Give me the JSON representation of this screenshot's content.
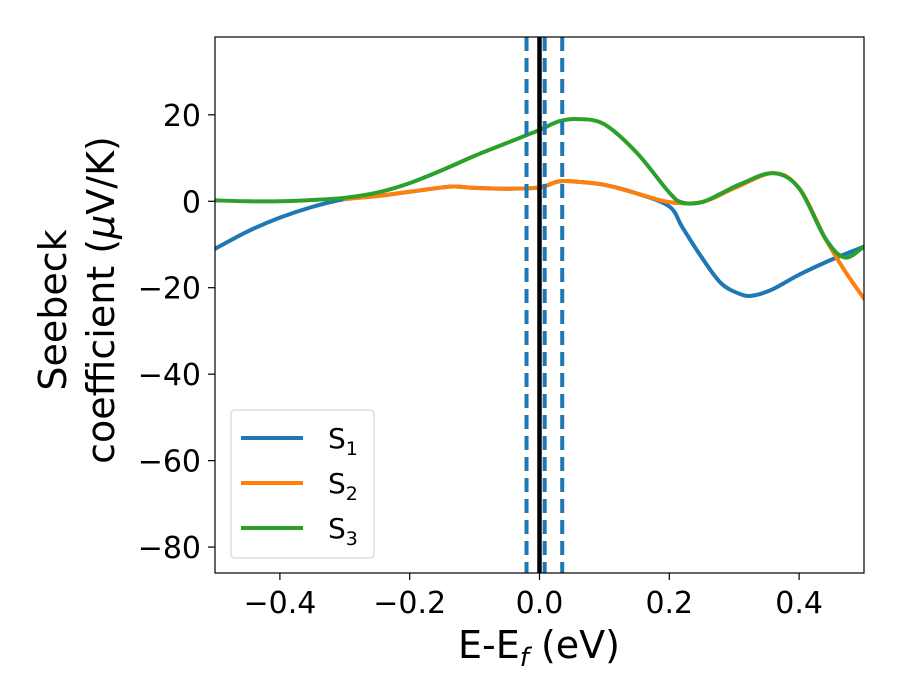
{
  "chart_data": {
    "type": "line",
    "title": "",
    "xlabel": "E-E",
    "xlabel_sub": "f",
    "xlabel_unit": " (eV)",
    "ylabel_line1": "Seebeck",
    "ylabel_line2": "coefficient  (",
    "ylabel_mu": "μ",
    "ylabel_unit": "V/K)",
    "xlim": [
      -0.5,
      0.5
    ],
    "ylim": [
      -86,
      38
    ],
    "grid": false,
    "legend_position": "lower-left",
    "x_ticks": [
      -0.4,
      -0.2,
      0.0,
      0.2,
      0.4
    ],
    "x_tick_labels": [
      "−0.4",
      "−0.2",
      "0.0",
      "0.2",
      "0.4"
    ],
    "y_ticks": [
      -80,
      -60,
      -40,
      -20,
      0,
      20
    ],
    "y_tick_labels": [
      "−80",
      "−60",
      "−40",
      "−20",
      "0",
      "20"
    ],
    "vertical_lines": [
      {
        "name": "fermi-level-line",
        "x": 0.0,
        "style": "solid",
        "color": "#000000"
      },
      {
        "name": "dashed-line-1",
        "x": -0.02,
        "style": "dashed",
        "color": "#1f77b4"
      },
      {
        "name": "dashed-line-2",
        "x": 0.008,
        "style": "dashed",
        "color": "#1f77b4"
      },
      {
        "name": "dashed-line-3",
        "x": 0.035,
        "style": "dashed",
        "color": "#1f77b4"
      }
    ],
    "series": [
      {
        "name": "S",
        "sub": "1",
        "color": "#1f77b4",
        "x": [
          -0.5,
          -0.45,
          -0.4,
          -0.35,
          -0.3,
          -0.25,
          -0.2,
          -0.15,
          -0.13,
          -0.1,
          -0.05,
          0.0,
          0.03,
          0.06,
          0.1,
          0.15,
          0.2,
          0.22,
          0.25,
          0.28,
          0.31,
          0.33,
          0.36,
          0.4,
          0.45,
          0.5
        ],
        "y": [
          -11,
          -7,
          -3.8,
          -1.3,
          0.5,
          1.2,
          2.2,
          3.2,
          3.4,
          3.1,
          2.9,
          3.2,
          4.6,
          4.5,
          3.8,
          1.8,
          -1.2,
          -6,
          -13,
          -19,
          -21.5,
          -21.8,
          -20.3,
          -17,
          -13.5,
          -10.5
        ]
      },
      {
        "name": "S",
        "sub": "2",
        "color": "#ff7f0e",
        "x": [
          -0.3,
          -0.25,
          -0.2,
          -0.15,
          -0.13,
          -0.1,
          -0.05,
          0.0,
          0.03,
          0.06,
          0.1,
          0.15,
          0.2,
          0.25,
          0.3,
          0.36,
          0.4,
          0.44,
          0.47,
          0.5
        ],
        "y": [
          0.5,
          1.2,
          2.2,
          3.2,
          3.4,
          3.1,
          2.9,
          3.2,
          4.6,
          4.5,
          3.8,
          1.8,
          -0.2,
          -0.2,
          3.0,
          6.5,
          3.0,
          -8.5,
          -16,
          -22.5
        ]
      },
      {
        "name": "S",
        "sub": "3",
        "color": "#2ca02c",
        "x": [
          -0.5,
          -0.45,
          -0.4,
          -0.35,
          -0.3,
          -0.25,
          -0.2,
          -0.15,
          -0.1,
          -0.05,
          0.0,
          0.03,
          0.06,
          0.1,
          0.15,
          0.2,
          0.22,
          0.25,
          0.28,
          0.31,
          0.36,
          0.4,
          0.44,
          0.47,
          0.5
        ],
        "y": [
          0.2,
          0,
          0,
          0.3,
          0.8,
          2.0,
          4.2,
          7.2,
          10.5,
          13.5,
          16.5,
          18.5,
          19.0,
          17.8,
          11.2,
          2.0,
          -0.3,
          -0.2,
          1.8,
          4.0,
          6.5,
          3.0,
          -8.5,
          -13.0,
          -10.5
        ]
      }
    ]
  }
}
